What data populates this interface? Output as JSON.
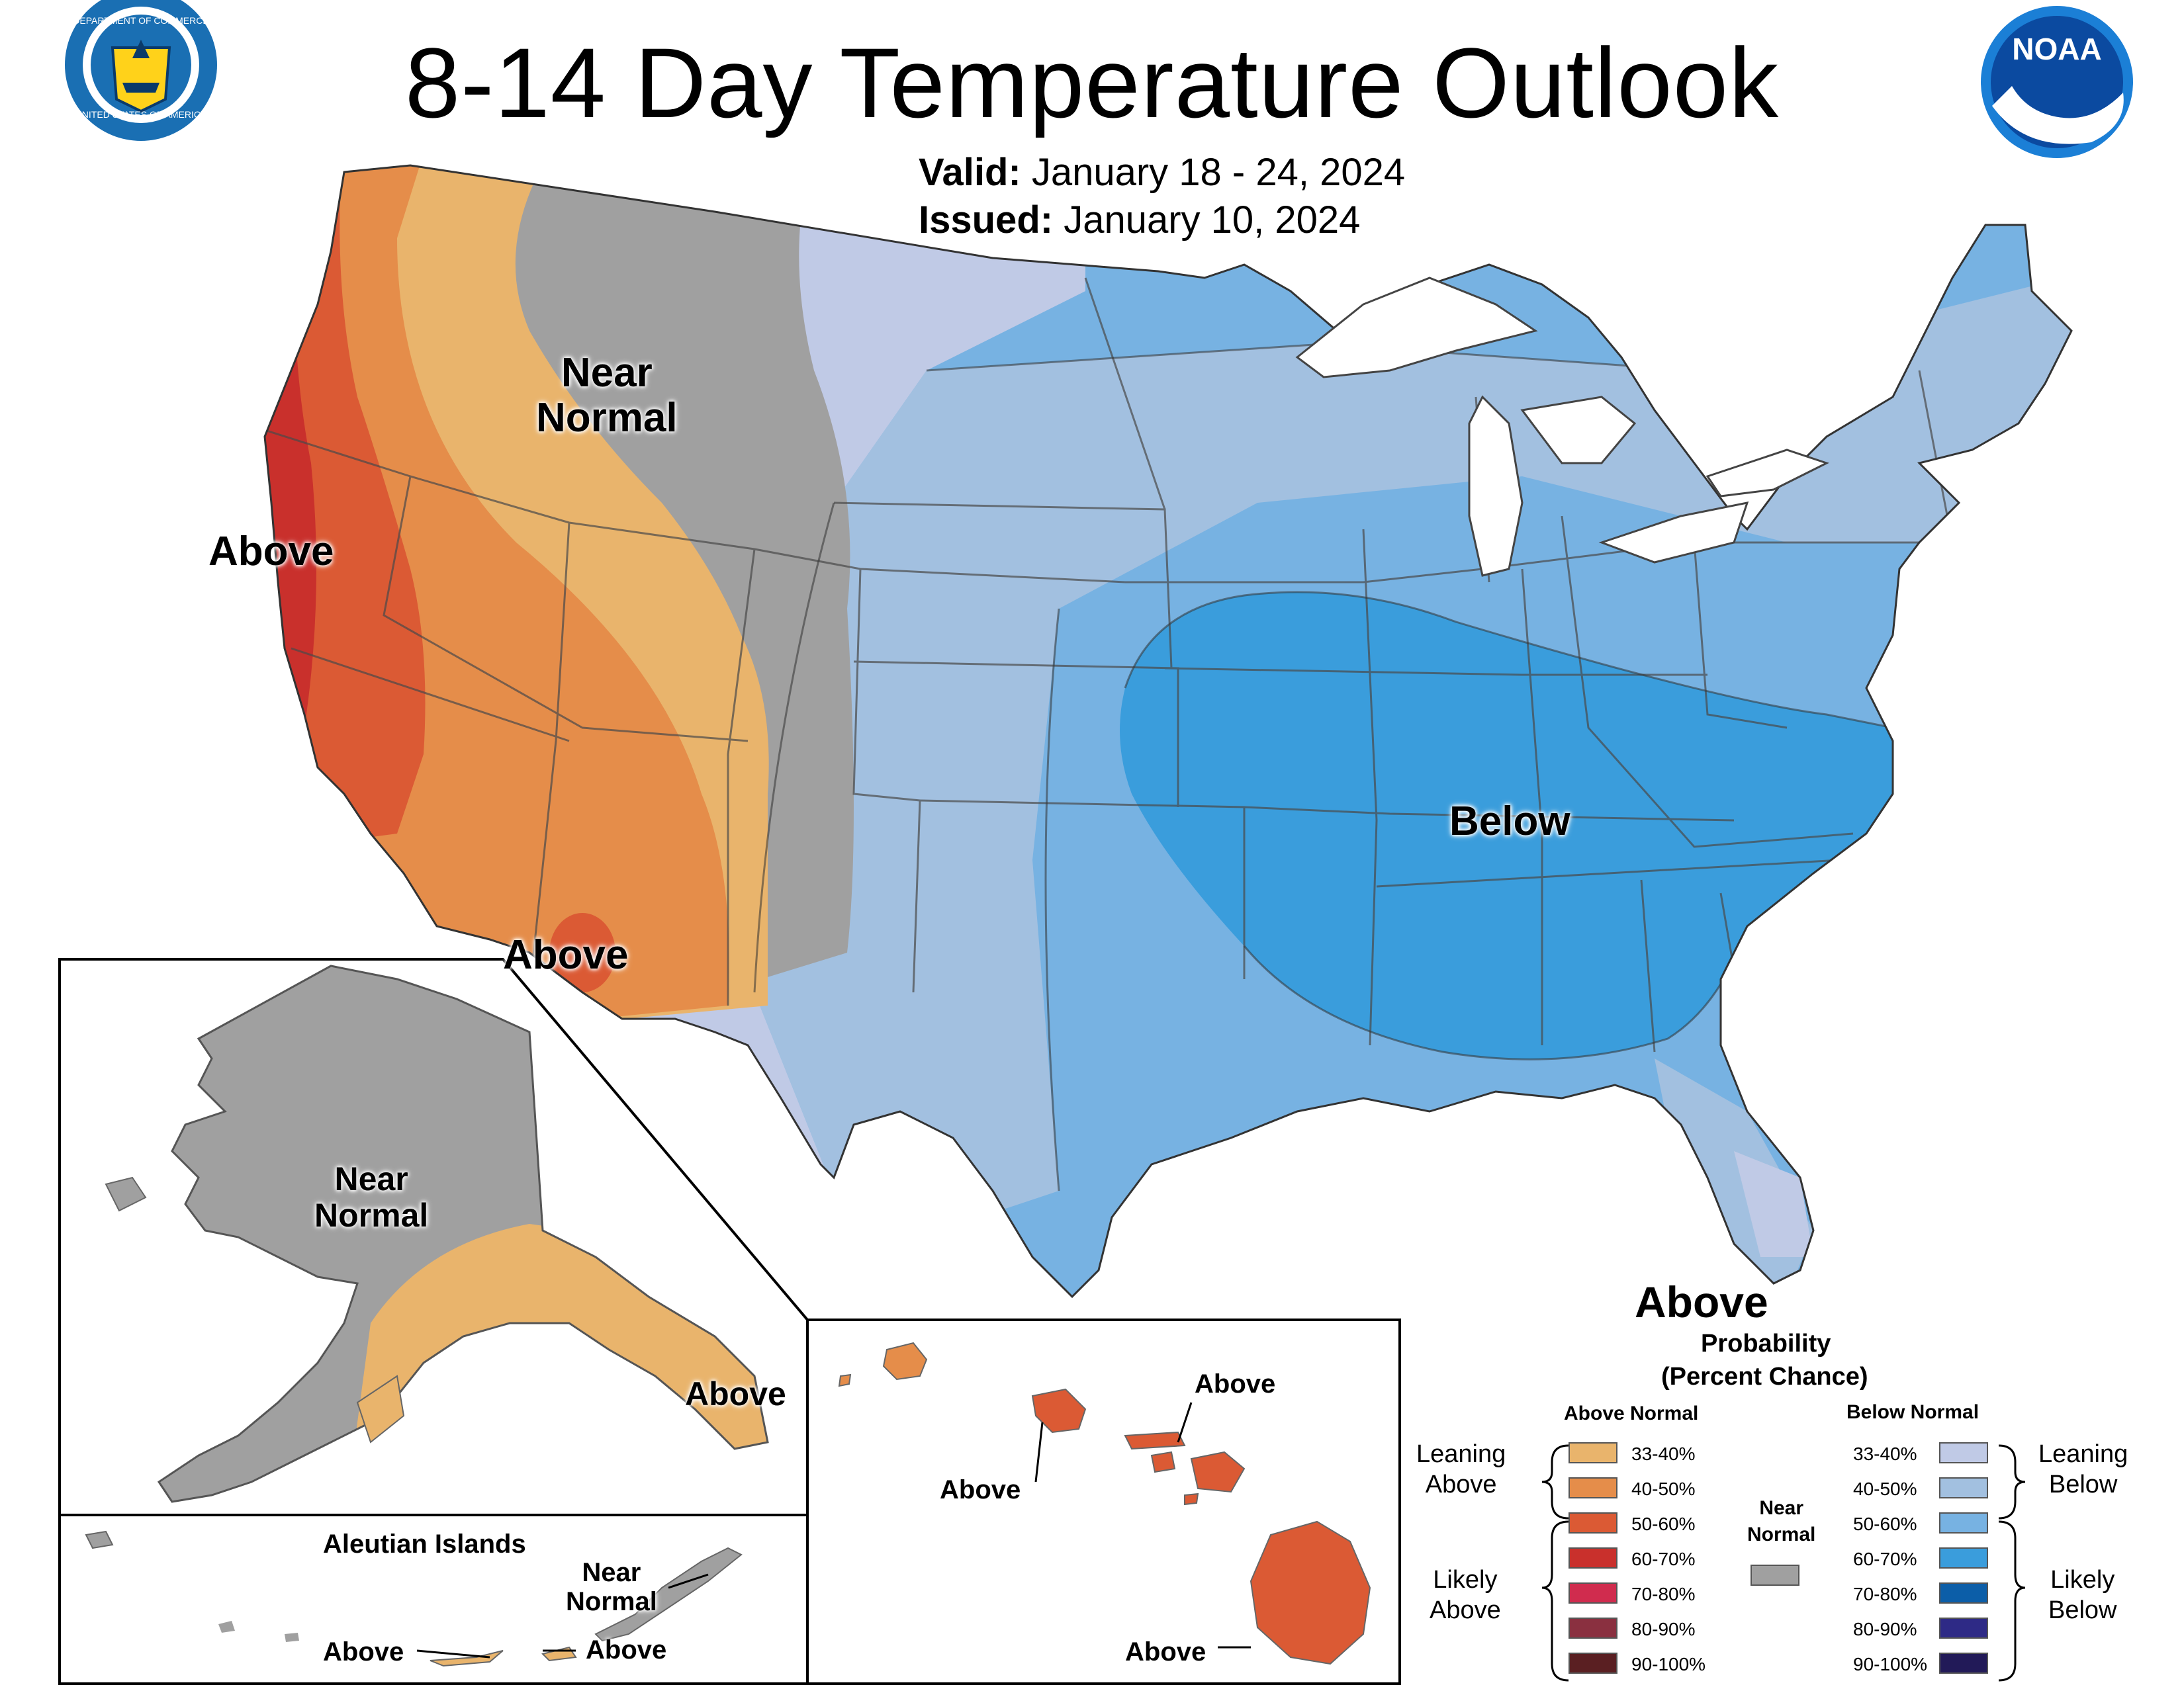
{
  "header": {
    "title": "8-14 Day Temperature Outlook",
    "valid_label": "Valid:",
    "valid_value": "January 18 - 24, 2024",
    "issued_label": "Issued:",
    "issued_value": "January 10, 2024",
    "left_seal": "department-of-commerce-seal",
    "right_logo": "noaa-logo",
    "seal_text_top": "DEPARTMENT OF COMMERCE",
    "seal_text_bottom": "UNITED STATES OF AMERICA",
    "noaa_text": "NOAA"
  },
  "map_labels": {
    "conus_near_normal": "Near\nNormal",
    "conus_above_west": "Above",
    "conus_above_southwest": "Above",
    "conus_below": "Below",
    "alaska_near_normal": "Near\nNormal",
    "alaska_above": "Above",
    "aleutian_title": "Aleutian Islands",
    "aleutian_near_normal": "Near\nNormal",
    "aleutian_above_1": "Above",
    "aleutian_above_2": "Above",
    "hawaii_above_1": "Above",
    "hawaii_above_2": "Above",
    "hawaii_above_3": "Above"
  },
  "legend": {
    "category": "Above",
    "subtitle_1": "Probability",
    "subtitle_2": "(Percent Chance)",
    "above_title": "Above Normal",
    "below_title": "Below Normal",
    "near_title": "Near\nNormal",
    "leaning_above": "Leaning\nAbove",
    "likely_above": "Likely\nAbove",
    "leaning_below": "Leaning\nBelow",
    "likely_below": "Likely\nBelow",
    "above": [
      {
        "label": "33-40%",
        "color": "#e9b46c"
      },
      {
        "label": "40-50%",
        "color": "#e58d4a"
      },
      {
        "label": "50-60%",
        "color": "#db5a34"
      },
      {
        "label": "60-70%",
        "color": "#c9302c"
      },
      {
        "label": "70-80%",
        "color": "#d02c4e"
      },
      {
        "label": "80-90%",
        "color": "#8a3040"
      },
      {
        "label": "90-100%",
        "color": "#5a1f22"
      }
    ],
    "below": [
      {
        "label": "33-40%",
        "color": "#c0cae6"
      },
      {
        "label": "40-50%",
        "color": "#a2c0e0"
      },
      {
        "label": "50-60%",
        "color": "#77b2e2"
      },
      {
        "label": "60-70%",
        "color": "#3a9ddc"
      },
      {
        "label": "70-80%",
        "color": "#0c5ea8"
      },
      {
        "label": "80-90%",
        "color": "#2e2a86"
      },
      {
        "label": "90-100%",
        "color": "#221a58"
      }
    ],
    "near_color": "#a0a0a0"
  }
}
